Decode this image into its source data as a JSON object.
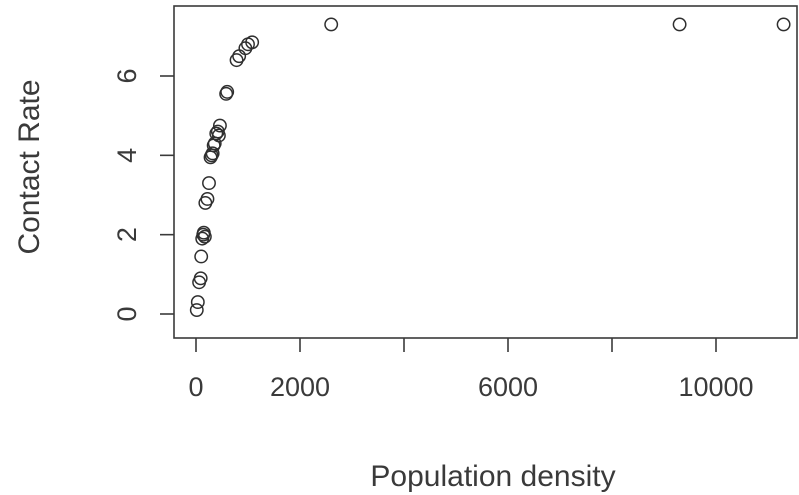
{
  "chart_data": {
    "type": "scatter",
    "title": "",
    "xlabel": "Population density",
    "ylabel": "Contact Rate",
    "xlim": [
      -500,
      12000
    ],
    "ylim": [
      -0.3,
      7.6
    ],
    "x_axis_ticks": [
      0,
      2000,
      4000,
      6000,
      8000,
      10000
    ],
    "x_tick_labels": [
      "0",
      "2000",
      "",
      "6000",
      "",
      "10000"
    ],
    "y_axis_ticks": [
      0,
      2,
      4,
      6
    ],
    "y_tick_labels": [
      "0",
      "2",
      "4",
      "6"
    ],
    "grid": false,
    "legend": "none",
    "series": [
      {
        "points": [
          {
            "x": 15,
            "y": 0.1
          },
          {
            "x": 35,
            "y": 0.3
          },
          {
            "x": 60,
            "y": 0.8
          },
          {
            "x": 90,
            "y": 0.9
          },
          {
            "x": 100,
            "y": 1.45
          },
          {
            "x": 120,
            "y": 1.9
          },
          {
            "x": 140,
            "y": 2.0
          },
          {
            "x": 150,
            "y": 2.05
          },
          {
            "x": 170,
            "y": 1.95
          },
          {
            "x": 180,
            "y": 2.8
          },
          {
            "x": 220,
            "y": 2.9
          },
          {
            "x": 250,
            "y": 3.3
          },
          {
            "x": 280,
            "y": 3.95
          },
          {
            "x": 300,
            "y": 4.0
          },
          {
            "x": 320,
            "y": 4.05
          },
          {
            "x": 340,
            "y": 4.25
          },
          {
            "x": 360,
            "y": 4.3
          },
          {
            "x": 390,
            "y": 4.55
          },
          {
            "x": 420,
            "y": 4.6
          },
          {
            "x": 440,
            "y": 4.5
          },
          {
            "x": 460,
            "y": 4.75
          },
          {
            "x": 580,
            "y": 5.55
          },
          {
            "x": 600,
            "y": 5.6
          },
          {
            "x": 780,
            "y": 6.4
          },
          {
            "x": 830,
            "y": 6.5
          },
          {
            "x": 950,
            "y": 6.7
          },
          {
            "x": 1000,
            "y": 6.8
          },
          {
            "x": 1080,
            "y": 6.85
          },
          {
            "x": 2600,
            "y": 7.3
          },
          {
            "x": 9300,
            "y": 7.3
          },
          {
            "x": 11300,
            "y": 7.3
          }
        ]
      }
    ]
  },
  "colors": {
    "axis": "#3a3a3a",
    "marker": "#2f2f2f",
    "background": "#ffffff"
  }
}
